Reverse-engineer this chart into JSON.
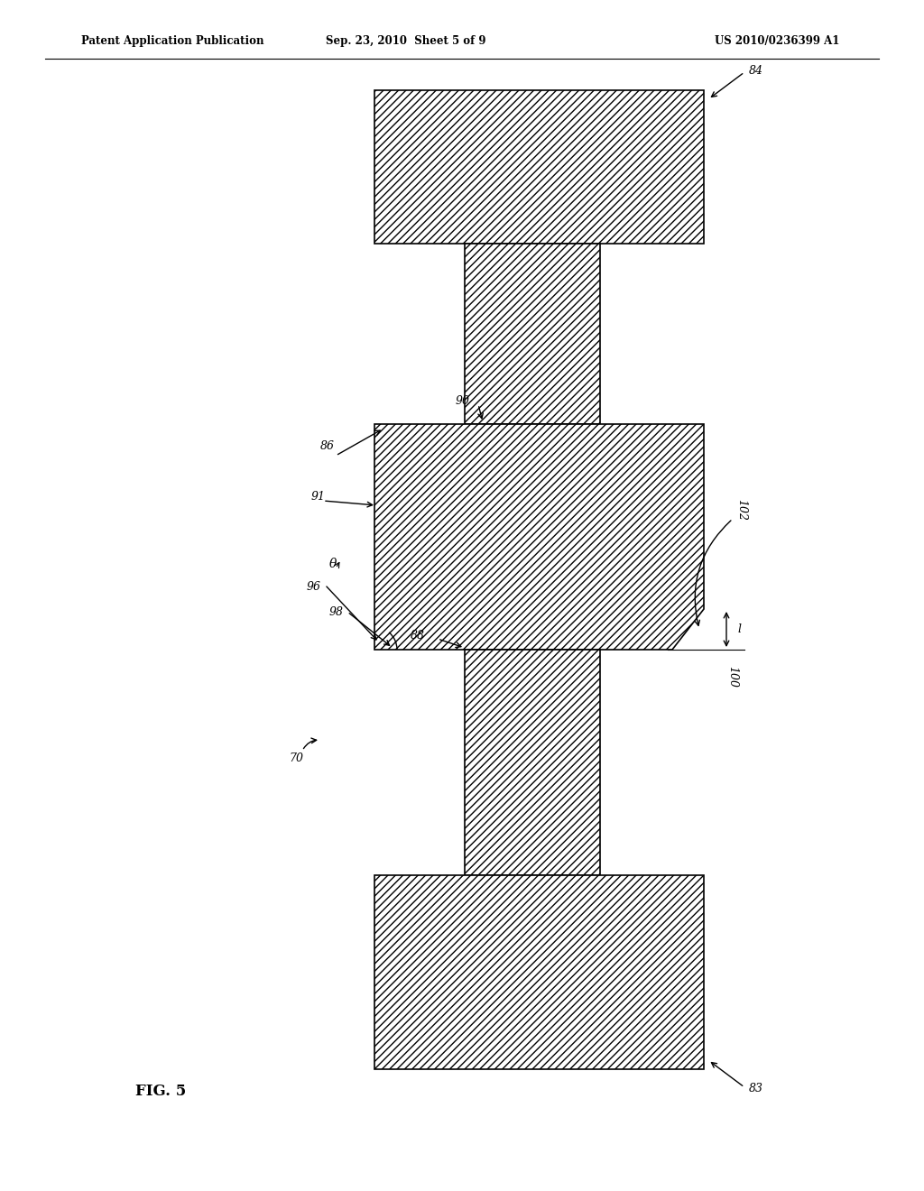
{
  "bg_color": "#ffffff",
  "hatch_color": "#000000",
  "hatch_pattern": "////",
  "line_color": "#000000",
  "header_left": "Patent Application Publication",
  "header_center": "Sep. 23, 2010  Sheet 5 of 9",
  "header_right": "US 2010/0236399 A1",
  "fig_label": "FIG. 5",
  "label_70": "70",
  "label_83": "83",
  "label_84": "84",
  "label_86": "86",
  "label_91": "91",
  "label_90": "90",
  "label_96": "96",
  "label_98": "98",
  "label_88": "88",
  "label_theta": "θ",
  "label_102": "102",
  "label_100": "100",
  "label_l": "l"
}
